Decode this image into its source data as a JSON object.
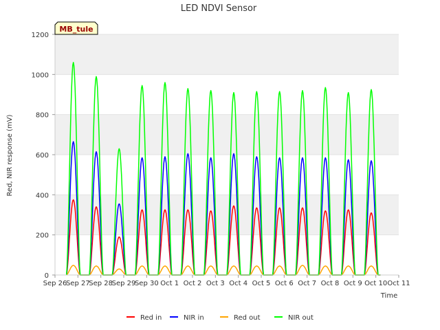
{
  "chart_data": {
    "type": "line",
    "title": "LED NDVI Sensor",
    "xlabel": "Time",
    "ylabel": "Red, NIR response (mV)",
    "site_tag": "MB_tule",
    "ylim": [
      0,
      1200
    ],
    "yticks": [
      0,
      200,
      400,
      600,
      800,
      1000,
      1200
    ],
    "xlim": [
      0,
      15
    ],
    "xticks": [
      {
        "x": 0,
        "label": "Sep 26"
      },
      {
        "x": 1,
        "label": "Sep 27"
      },
      {
        "x": 2,
        "label": "Sep 28"
      },
      {
        "x": 3,
        "label": "Sep 29"
      },
      {
        "x": 4,
        "label": "Sep 30"
      },
      {
        "x": 5,
        "label": "Oct 1"
      },
      {
        "x": 6,
        "label": "Oct 2"
      },
      {
        "x": 7,
        "label": "Oct 3"
      },
      {
        "x": 8,
        "label": "Oct 4"
      },
      {
        "x": 9,
        "label": "Oct 5"
      },
      {
        "x": 10,
        "label": "Oct 6"
      },
      {
        "x": 11,
        "label": "Oct 7"
      },
      {
        "x": 12,
        "label": "Oct 8"
      },
      {
        "x": 13,
        "label": "Oct 9"
      },
      {
        "x": 14,
        "label": "Oct 10"
      },
      {
        "x": 15,
        "label": "Oct 11"
      }
    ],
    "grid": true,
    "legend_position": "bottom",
    "daily_peak_x": [
      0.8,
      1.8,
      2.8,
      3.8,
      4.8,
      5.8,
      6.8,
      7.8,
      8.8,
      9.8,
      10.8,
      11.8,
      12.8,
      13.8
    ],
    "series": [
      {
        "name": "Red in",
        "color": "#ff0000",
        "daily_peaks": [
          375,
          340,
          190,
          325,
          325,
          325,
          320,
          345,
          335,
          335,
          335,
          320,
          325,
          310
        ]
      },
      {
        "name": "NIR in",
        "color": "#0000ff",
        "daily_peaks": [
          665,
          615,
          355,
          585,
          590,
          605,
          585,
          605,
          590,
          585,
          585,
          585,
          575,
          570
        ]
      },
      {
        "name": "Red out",
        "color": "#ffa500",
        "daily_peaks": [
          48,
          45,
          30,
          45,
          45,
          45,
          45,
          45,
          45,
          45,
          48,
          45,
          45,
          45
        ]
      },
      {
        "name": "NIR out",
        "color": "#00ff00",
        "daily_peaks": [
          1060,
          990,
          630,
          945,
          960,
          930,
          920,
          910,
          915,
          915,
          920,
          935,
          910,
          925
        ]
      }
    ]
  }
}
